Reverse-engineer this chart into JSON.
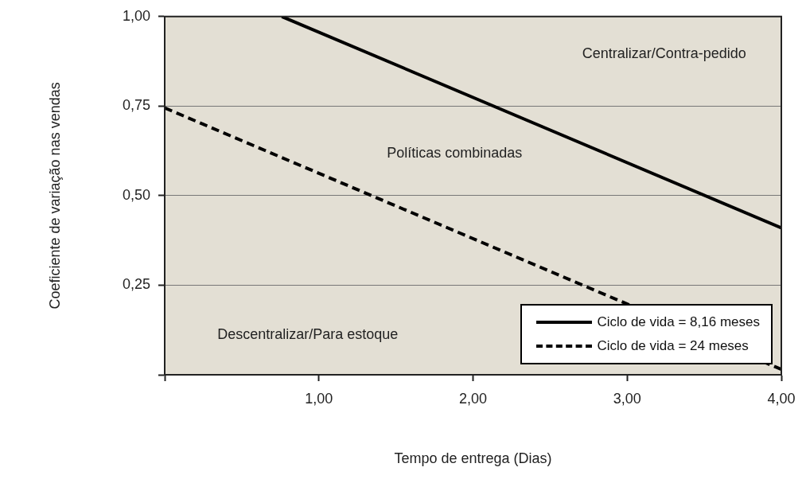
{
  "chart_data": {
    "type": "line",
    "xlabel": "Tempo de entrega (Dias)",
    "ylabel": "Coeficiente de variação nas vendas",
    "series": [
      {
        "name": "Ciclo de vida = 8,16 meses",
        "color": "#000000",
        "line_style": "solid",
        "x": [
          0.76,
          4.0
        ],
        "values": [
          1.0,
          0.41
        ]
      },
      {
        "name": "Ciclo de vida = 24 meses",
        "color": "#000000",
        "line_style": "dashed",
        "x": [
          0.0,
          4.0
        ],
        "values": [
          0.745,
          0.015
        ]
      }
    ],
    "xlim": [
      0,
      4
    ],
    "ylim": [
      0,
      1
    ],
    "xticks": [
      {
        "value": 0,
        "label": null
      },
      {
        "value": 1,
        "label": "1,00"
      },
      {
        "value": 2,
        "label": "2,00"
      },
      {
        "value": 3,
        "label": "3,00"
      },
      {
        "value": 4,
        "label": "4,00"
      }
    ],
    "yticks": [
      {
        "value": 0,
        "label": null
      },
      {
        "value": 0.25,
        "label": "0,25"
      },
      {
        "value": 0.5,
        "label": "0,50"
      },
      {
        "value": 0.75,
        "label": "0,75"
      },
      {
        "value": 1,
        "label": "1,00"
      }
    ],
    "annotations": [
      "Centralizar/Contra-pedido",
      "Políticas combinadas",
      "Descentralizar/Para estoque"
    ],
    "grid": "y",
    "legend": "bottom right",
    "marker": "none"
  }
}
